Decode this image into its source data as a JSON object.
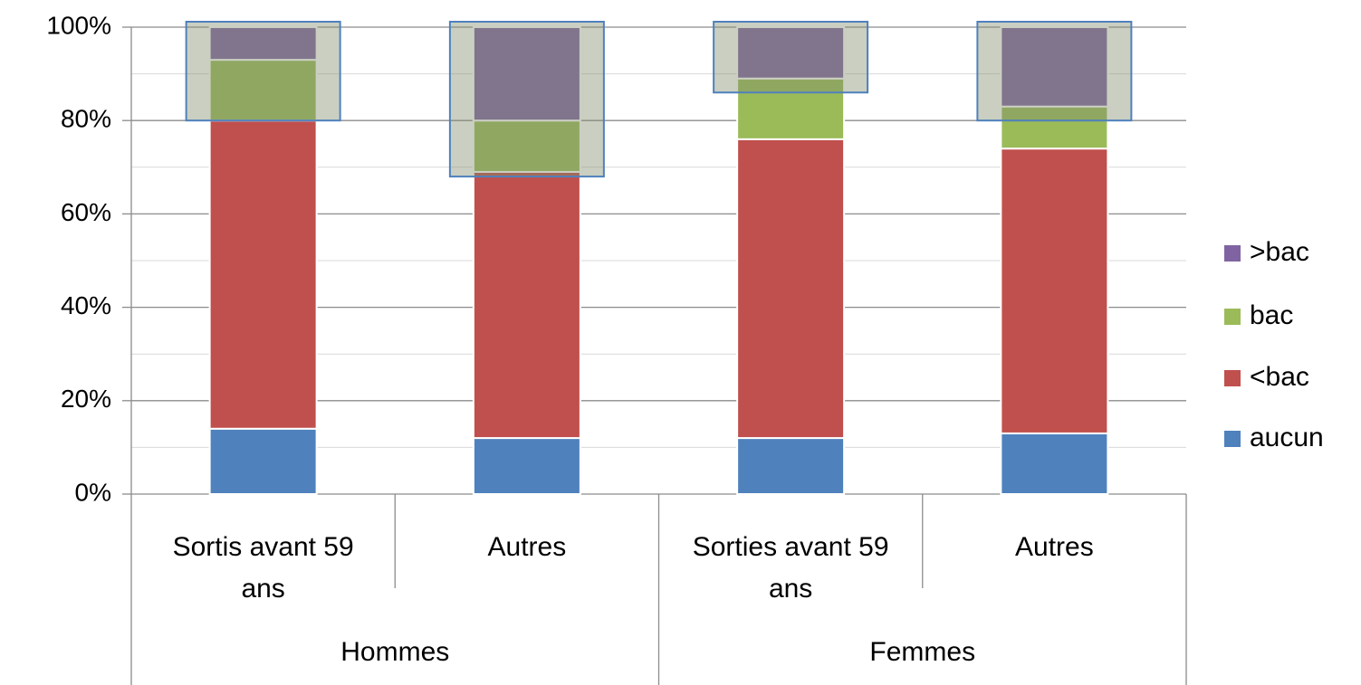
{
  "chart_data": {
    "type": "stacked_bar",
    "categories": [
      "Sortis avant 59 ans",
      "Autres",
      "Sorties avant 59 ans",
      "Autres"
    ],
    "groups": [
      "Hommes",
      "Femmes"
    ],
    "series": [
      {
        "name": "aucun",
        "color": "#4f81bd",
        "values": [
          14,
          12,
          12,
          13
        ]
      },
      {
        "name": "<bac",
        "color": "#c0504d",
        "values": [
          66,
          57,
          64,
          61
        ]
      },
      {
        "name": "bac",
        "color": "#9bbb59",
        "values": [
          13,
          11,
          13,
          9
        ]
      },
      {
        "name": ">bac",
        "color": "#8064a2",
        "values": [
          7,
          20,
          11,
          17
        ]
      }
    ],
    "highlights": [
      [
        80,
        100
      ],
      [
        68,
        100
      ],
      [
        86,
        100
      ],
      [
        80,
        100
      ]
    ],
    "ylim": [
      0,
      100
    ],
    "yticks": [
      {
        "value": 0,
        "label": "0%"
      },
      {
        "value": 20,
        "label": "20%"
      },
      {
        "value": 40,
        "label": "40%"
      },
      {
        "value": 60,
        "label": "60%"
      },
      {
        "value": 80,
        "label": "80%"
      },
      {
        "value": 100,
        "label": "100%"
      }
    ],
    "yminorticks": [
      10,
      30,
      50,
      70,
      90
    ],
    "grid": true,
    "legend": "right"
  }
}
